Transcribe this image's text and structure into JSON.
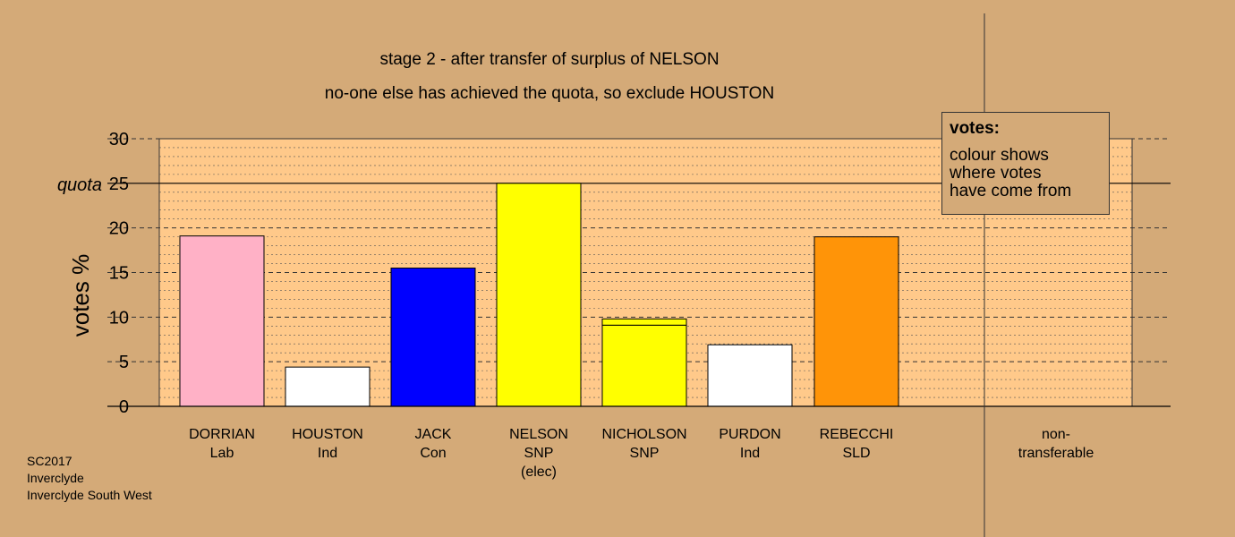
{
  "chart_data": {
    "type": "bar",
    "title": "stage 2 - after transfer of surplus of NELSON",
    "subtitle": "no-one else has achieved the quota, so exclude HOUSTON",
    "ylabel": "votes %",
    "ylim": [
      0,
      30
    ],
    "yticks": [
      "0",
      "5",
      "10",
      "15",
      "20",
      "25",
      "30"
    ],
    "quota_label": "quota",
    "quota_value": 25,
    "grid": true,
    "categories": [
      {
        "name": "DORRIAN",
        "party": "Lab",
        "extra": ""
      },
      {
        "name": "HOUSTON",
        "party": "Ind",
        "extra": ""
      },
      {
        "name": "JACK",
        "party": "Con",
        "extra": ""
      },
      {
        "name": "NELSON",
        "party": "SNP",
        "extra": "(elec)"
      },
      {
        "name": "NICHOLSON",
        "party": "SNP",
        "extra": ""
      },
      {
        "name": "PURDON",
        "party": "Ind",
        "extra": ""
      },
      {
        "name": "REBECCHI",
        "party": "SLD",
        "extra": ""
      },
      {
        "name": "non-",
        "party": "transferable",
        "extra": ""
      }
    ],
    "segments": [
      [
        {
          "value": 19.1,
          "color": "#ffb1c6"
        }
      ],
      [
        {
          "value": 4.4,
          "color": "#ffffff"
        }
      ],
      [
        {
          "value": 15.5,
          "color": "#0000ff"
        }
      ],
      [
        {
          "value": 25.0,
          "color": "#ffff00"
        }
      ],
      [
        {
          "value": 9.1,
          "color": "#ffff00"
        },
        {
          "value": 0.7,
          "color": "#ffff00"
        }
      ],
      [
        {
          "value": 6.9,
          "color": "#ffffff"
        }
      ],
      [
        {
          "value": 19.0,
          "color": "#ff9408"
        }
      ],
      []
    ]
  },
  "legend": {
    "title": "votes:",
    "lines": [
      "colour shows",
      "where votes",
      "have come from"
    ]
  },
  "footer": {
    "lines": [
      "SC2017",
      "Inverclyde",
      "Inverclyde South West"
    ]
  },
  "colors": {
    "background": "#d4aa78",
    "plot_area": "#ffc98a"
  }
}
